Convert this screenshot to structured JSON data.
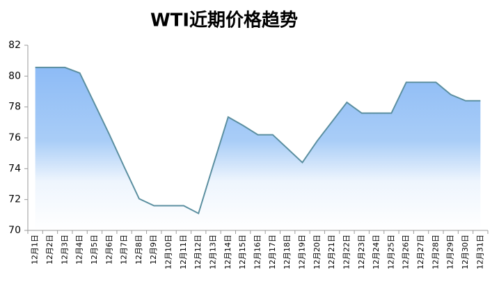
{
  "chart_data": {
    "type": "area",
    "title": "WTI近期价格趋势",
    "categories": [
      "12月1日",
      "12月2日",
      "12月3日",
      "12月4日",
      "12月5日",
      "12月6日",
      "12月7日",
      "12月8日",
      "12月9日",
      "12月10日",
      "12月11日",
      "12月12日",
      "12月13日",
      "12月14日",
      "12月15日",
      "12月16日",
      "12月17日",
      "12月18日",
      "12月19日",
      "12月20日",
      "12月21日",
      "12月22日",
      "12月23日",
      "12月24日",
      "12月25日",
      "12月26日",
      "12月27日",
      "12月28日",
      "12月29日",
      "12月30日",
      "12月31日"
    ],
    "values": [
      80.56,
      80.56,
      80.56,
      80.2,
      78.2,
      76.2,
      74.1,
      72.05,
      71.6,
      71.6,
      71.6,
      71.1,
      74.25,
      77.35,
      76.8,
      76.2,
      76.2,
      75.3,
      74.4,
      75.8,
      77.05,
      78.3,
      77.6,
      77.6,
      77.6,
      79.6,
      79.6,
      79.6,
      78.8,
      78.4,
      78.4
    ],
    "color": "#5b8fa0",
    "ylim": [
      70,
      82
    ],
    "yticks": [
      70,
      72,
      74,
      76,
      78,
      80,
      82
    ]
  }
}
